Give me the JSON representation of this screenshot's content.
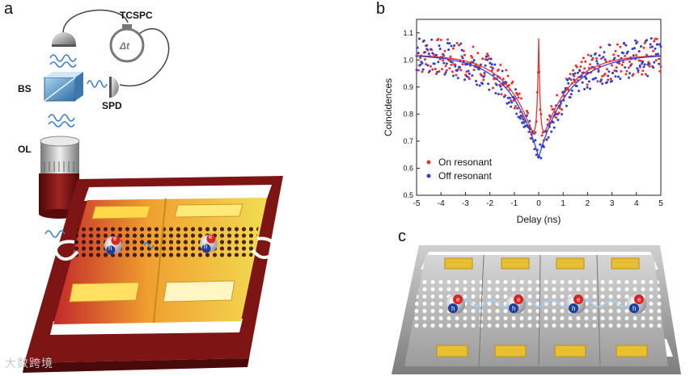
{
  "panels": {
    "a": {
      "letter": "a",
      "labels": {
        "tcspc": "TCSPC",
        "delta_t": "Δt",
        "bs": "BS",
        "spd": "SPD",
        "ol": "OL",
        "electron": "e",
        "hole": "h"
      }
    },
    "b": {
      "letter": "b"
    },
    "c": {
      "letter": "c",
      "electron": "e",
      "hole": "h"
    }
  },
  "chart_data": {
    "type": "scatter",
    "xlabel": "Delay (ns)",
    "ylabel": "Coincidences",
    "xlim": [
      -5,
      5
    ],
    "ylim": [
      0.5,
      1.15
    ],
    "xticks": [
      -5,
      -4,
      -3,
      -2,
      -1,
      0,
      1,
      2,
      3,
      4,
      5
    ],
    "yticks": [
      0.5,
      0.6,
      0.7,
      0.8,
      0.9,
      1.0,
      1.1
    ],
    "legend_position": "bottom-left",
    "series": [
      {
        "name": "On resonant",
        "color": "#e8322f",
        "fit": {
          "baseline": 1.02,
          "dip_depth": 0.37,
          "dip_tau": 1.1,
          "bunch_height": 0.43,
          "bunch_tau": 0.07
        }
      },
      {
        "name": "Off resonant",
        "color": "#2f3fd6",
        "fit": {
          "baseline": 1.02,
          "dip_depth": 0.38,
          "dip_tau": 1.2,
          "bunch_height": 0.0,
          "bunch_tau": 0.07
        }
      }
    ]
  },
  "watermark": "大数跨境",
  "colors": {
    "frame_red": "#7e1515",
    "gold": "#e8c23a",
    "gray_slab": "#b9b9b9"
  }
}
